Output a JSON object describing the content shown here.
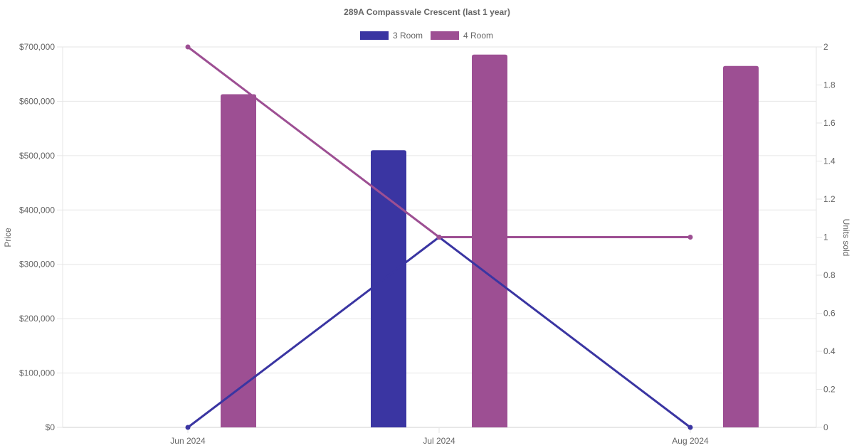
{
  "chart_data": {
    "type": "bar",
    "title": "289A Compassvale Crescent (last 1 year)",
    "categories": [
      "Jun 2024",
      "Jul 2024",
      "Aug 2024"
    ],
    "y_left": {
      "label": "Price",
      "range": [
        0,
        700000
      ],
      "ticks": [
        "$0",
        "$100,000",
        "$200,000",
        "$300,000",
        "$400,000",
        "$500,000",
        "$600,000",
        "$700,000"
      ]
    },
    "y_right": {
      "label": "Units sold",
      "range": [
        0,
        2
      ],
      "ticks": [
        "0",
        "0.2",
        "0.4",
        "0.6",
        "0.8",
        "1",
        "1.2",
        "1.4",
        "1.6",
        "1.8",
        "2"
      ]
    },
    "grid": true,
    "legend_position": "top",
    "series": [
      {
        "name": "3 Room",
        "color": "#3a35a2",
        "price": [
          null,
          510000,
          null
        ],
        "units_sold": [
          0,
          1,
          0
        ]
      },
      {
        "name": "4 Room",
        "color": "#9d4f93",
        "price": [
          613000,
          686000,
          665000
        ],
        "units_sold": [
          2,
          1,
          1
        ]
      }
    ]
  }
}
